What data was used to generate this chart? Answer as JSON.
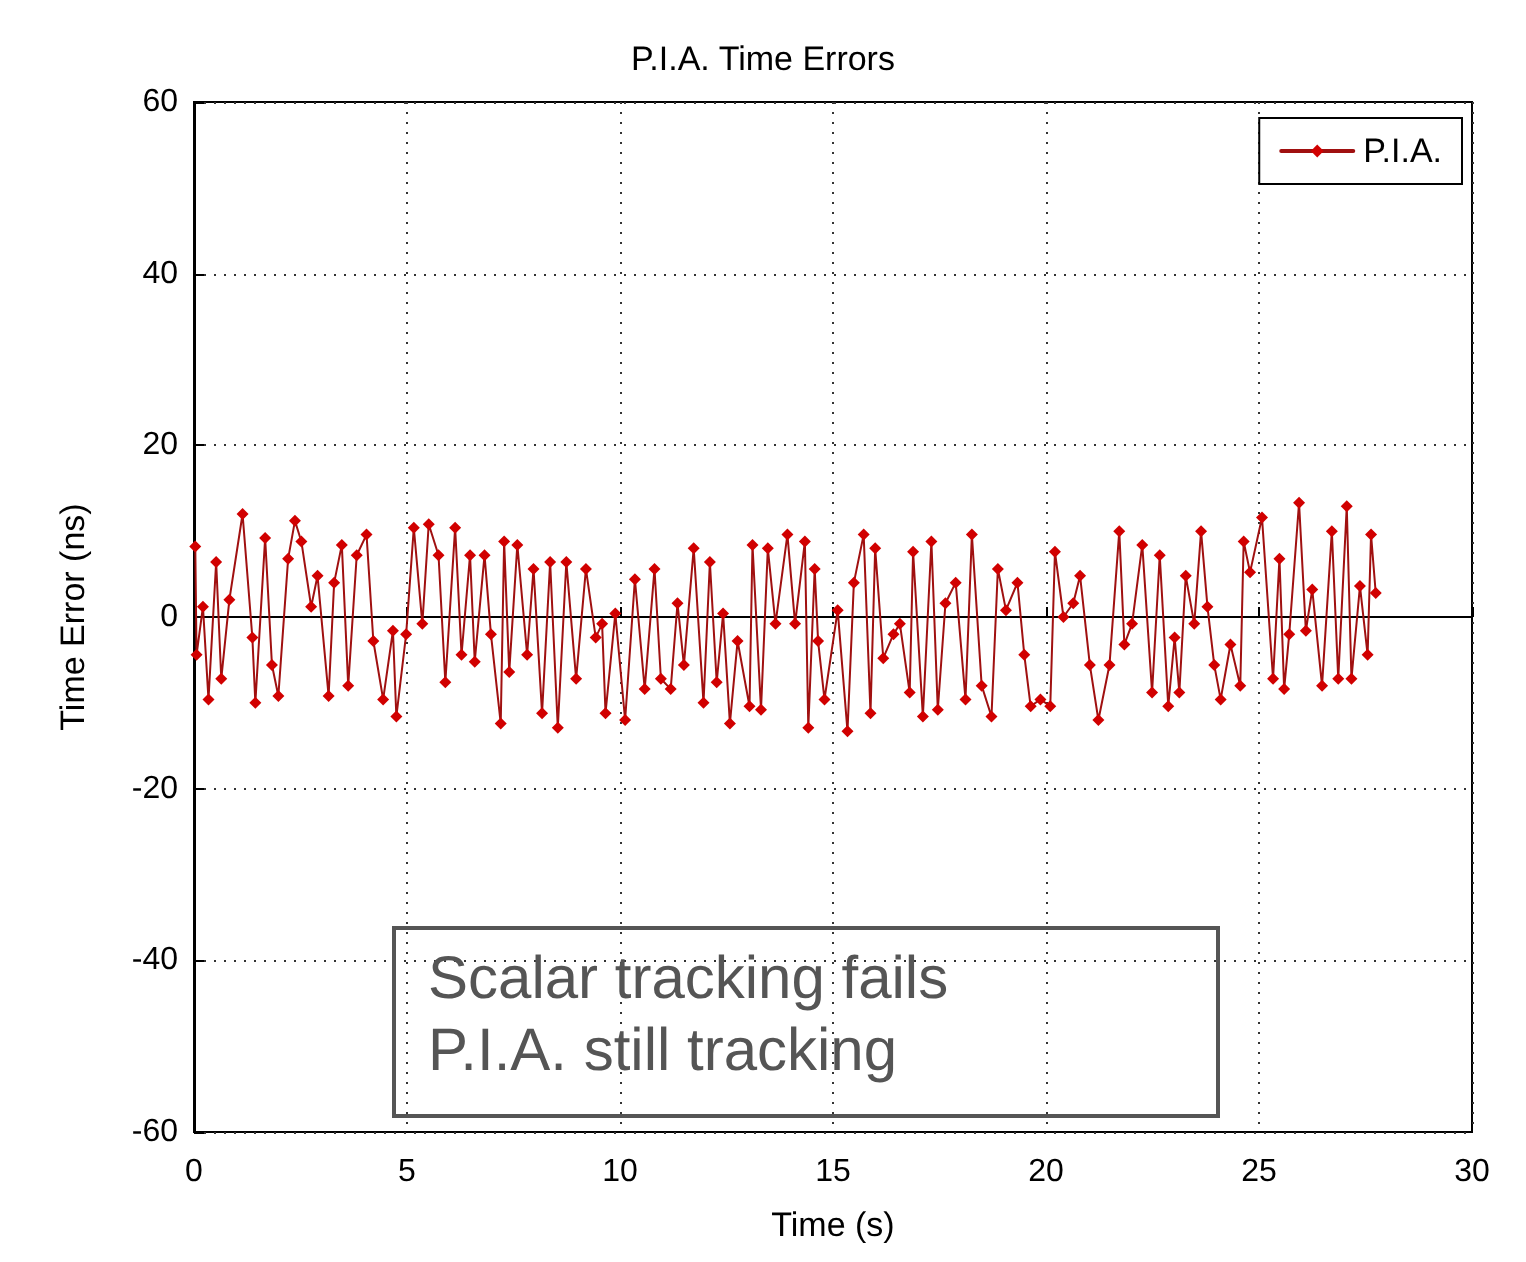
{
  "chart_data": {
    "type": "line",
    "title": "P.I.A. Time Errors",
    "xlabel": "Time (s)",
    "ylabel": "Time Error (ns)",
    "xlim": [
      0,
      30
    ],
    "xticks": [
      0,
      5,
      10,
      15,
      20,
      25,
      30
    ],
    "ylim": [
      -60,
      60
    ],
    "yticks": [
      -60,
      -40,
      -20,
      0,
      20,
      40,
      60
    ],
    "grid": true,
    "legend": "top right",
    "marker": "diamond",
    "line_style": "solid",
    "annotations": [
      "Scalar tracking fails",
      "P.I.A. still tracking"
    ],
    "x": [
      0.03,
      0.06,
      0.21,
      0.34,
      0.52,
      0.64,
      0.83,
      1.14,
      1.37,
      1.44,
      1.67,
      1.83,
      1.98,
      2.21,
      2.37,
      2.52,
      2.75,
      2.9,
      3.16,
      3.29,
      3.47,
      3.62,
      3.82,
      4.05,
      4.21,
      4.44,
      4.67,
      4.75,
      4.98,
      5.16,
      5.36,
      5.51,
      5.74,
      5.9,
      6.13,
      6.28,
      6.48,
      6.59,
      6.82,
      6.97,
      7.2,
      7.28,
      7.4,
      7.59,
      7.82,
      7.97,
      8.17,
      8.36,
      8.54,
      8.74,
      8.97,
      9.2,
      9.43,
      9.58,
      9.66,
      9.89,
      10.12,
      10.35,
      10.58,
      10.81,
      10.96,
      11.19,
      11.35,
      11.5,
      11.73,
      11.96,
      12.11,
      12.27,
      12.42,
      12.58,
      12.76,
      13.04,
      13.11,
      13.31,
      13.47,
      13.65,
      13.93,
      14.11,
      14.34,
      14.42,
      14.57,
      14.65,
      14.8,
      15.11,
      15.34,
      15.49,
      15.72,
      15.88,
      15.99,
      16.18,
      16.42,
      16.57,
      16.8,
      16.88,
      17.11,
      17.31,
      17.46,
      17.64,
      17.88,
      18.11,
      18.26,
      18.49,
      18.72,
      18.87,
      19.06,
      19.33,
      19.49,
      19.64,
      19.87,
      20.1,
      20.21,
      20.41,
      20.64,
      20.8,
      21.03,
      21.23,
      21.49,
      21.72,
      21.84,
      22.02,
      22.26,
      22.49,
      22.67,
      22.87,
      23.02,
      23.13,
      23.28,
      23.48,
      23.64,
      23.79,
      23.95,
      24.1,
      24.33,
      24.56,
      24.64,
      24.79,
      25.07,
      25.33,
      25.48,
      25.59,
      25.71,
      25.94,
      26.1,
      26.25,
      26.48,
      26.71,
      26.86,
      27.06,
      27.17,
      27.37,
      27.55,
      27.63,
      27.74
    ],
    "series": [
      {
        "name": "P.I.A.",
        "color": "#d10000",
        "values": [
          8.2,
          -4.4,
          1.2,
          -9.6,
          6.4,
          -7.2,
          2,
          12,
          -2.4,
          -10,
          9.2,
          -5.6,
          -9.2,
          6.8,
          11.2,
          8.8,
          1.2,
          4.8,
          -9.2,
          4,
          8.4,
          -8,
          7.2,
          9.6,
          -2.8,
          -9.6,
          -1.6,
          -11.6,
          -2,
          10.4,
          -0.8,
          10.8,
          7.2,
          -7.6,
          10.4,
          -4.4,
          7.2,
          -5.2,
          7.2,
          -2,
          -12.4,
          8.8,
          -6.4,
          8.4,
          -4.4,
          5.6,
          -11.2,
          6.4,
          -12.9,
          6.4,
          -7.2,
          5.6,
          -2.4,
          -0.8,
          -11.2,
          0.4,
          -12,
          4.4,
          -8.4,
          5.6,
          -7.2,
          -8.4,
          1.6,
          -5.6,
          8,
          -10,
          6.4,
          -7.6,
          0.4,
          -12.4,
          -2.8,
          -10.4,
          8.4,
          -10.8,
          8,
          -0.8,
          9.6,
          -0.8,
          8.8,
          -12.9,
          5.6,
          -2.8,
          -9.6,
          0.8,
          -13.3,
          4,
          9.6,
          -11.2,
          8,
          -4.8,
          -2,
          -0.8,
          -8.8,
          7.6,
          -11.6,
          8.8,
          -10.8,
          1.6,
          4,
          -9.6,
          9.6,
          -8,
          -11.6,
          5.6,
          0.8,
          4,
          -4.4,
          -10.4,
          -9.6,
          -10.4,
          7.6,
          0,
          1.6,
          4.8,
          -5.6,
          -12,
          -5.6,
          10,
          -3.2,
          -0.8,
          8.4,
          -8.8,
          7.2,
          -10.4,
          -2.4,
          -8.8,
          4.8,
          -0.8,
          10,
          1.2,
          -5.6,
          -9.6,
          -3.2,
          -8,
          8.8,
          5.2,
          11.6,
          -7.2,
          6.8,
          -8.4,
          -2,
          13.3,
          -1.6,
          3.2,
          -8,
          10,
          -7.2,
          12.9,
          -7.2,
          3.6,
          -4.4,
          9.6,
          2.8
        ]
      }
    ]
  }
}
